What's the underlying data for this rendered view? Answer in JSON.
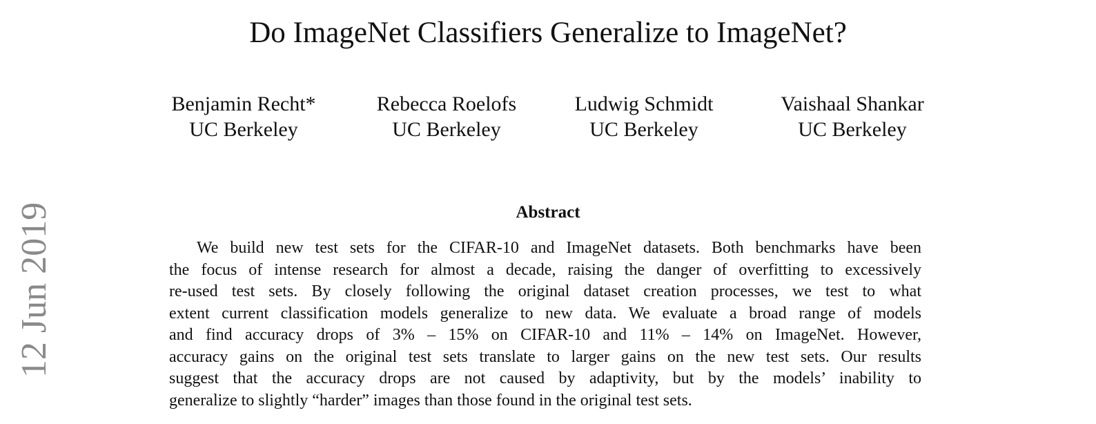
{
  "paper": {
    "side_date": "12 Jun 2019",
    "title": "Do ImageNet Classifiers Generalize to ImageNet?",
    "authors": [
      {
        "name": "Benjamin Recht*",
        "affiliation": "UC Berkeley"
      },
      {
        "name": "Rebecca Roelofs",
        "affiliation": "UC Berkeley"
      },
      {
        "name": "Ludwig Schmidt",
        "affiliation": "UC Berkeley"
      },
      {
        "name": "Vaishaal Shankar",
        "affiliation": "UC Berkeley"
      }
    ],
    "abstract_heading": "Abstract",
    "abstract_lines": [
      "We build new test sets for the CIFAR-10 and ImageNet datasets. Both benchmarks have been",
      "the focus of intense research for almost a decade, raising the danger of overfitting to excessively",
      "re-used test sets. By closely following the original dataset creation processes, we test to what",
      "extent current classification models generalize to new data. We evaluate a broad range of models",
      "and find accuracy drops of 3% – 15% on CIFAR-10 and 11% – 14% on ImageNet. However,",
      "accuracy gains on the original test sets translate to larger gains on the new test sets. Our results",
      "suggest that the accuracy drops are not caused by adaptivity, but by the models’ inability to",
      "generalize to slightly “harder” images than those found in the original test sets."
    ]
  }
}
